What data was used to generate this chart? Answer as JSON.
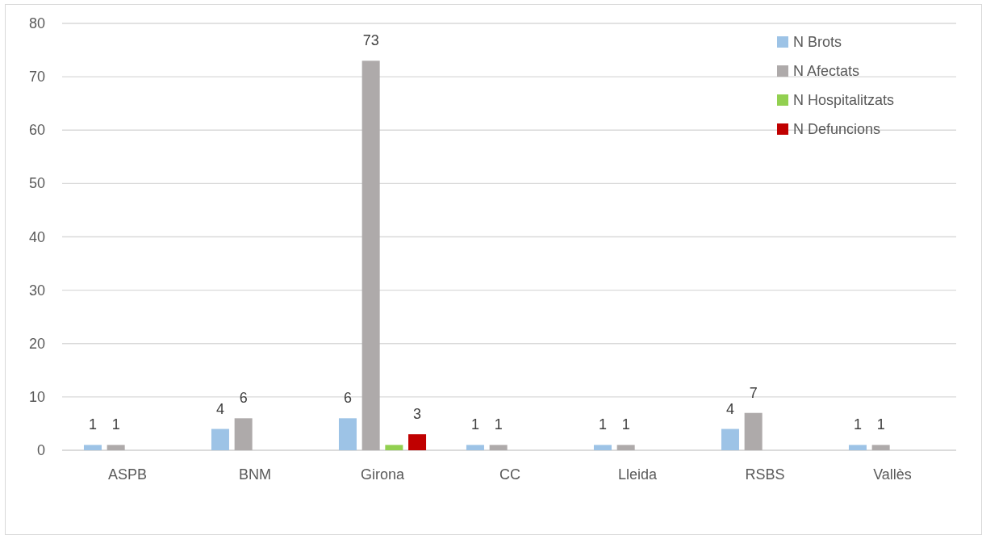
{
  "chart_data": {
    "type": "bar",
    "categories": [
      "ASPB",
      "BNM",
      "Girona",
      "CC",
      "Lleida",
      "RSBS",
      "Vallès"
    ],
    "series": [
      {
        "name": "N Brots",
        "color": "#9dc3e6",
        "values": [
          1,
          4,
          6,
          1,
          1,
          4,
          1
        ],
        "value_labels": [
          "1",
          "4",
          "6",
          "1",
          "1",
          "4",
          "1"
        ]
      },
      {
        "name": "N Afectats",
        "color": "#aeaaaa",
        "values": [
          1,
          6,
          73,
          1,
          1,
          7,
          1
        ],
        "value_labels": [
          "1",
          "6",
          "73",
          "1",
          "1",
          "7",
          "1"
        ]
      },
      {
        "name": "N Hospitalitzats",
        "color": "#92d050",
        "values": [
          null,
          null,
          1,
          null,
          null,
          null,
          null
        ],
        "value_labels": [
          null,
          null,
          null,
          null,
          null,
          null,
          null
        ]
      },
      {
        "name": "N Defuncions",
        "color": "#c00000",
        "values": [
          null,
          null,
          3,
          null,
          null,
          null,
          null
        ],
        "value_labels": [
          null,
          null,
          "3",
          null,
          null,
          null,
          null
        ]
      }
    ],
    "ylim": [
      0,
      80
    ],
    "yticks": [
      0,
      10,
      20,
      30,
      40,
      50,
      60,
      70,
      80
    ],
    "grid": "y",
    "legend": "top right"
  }
}
